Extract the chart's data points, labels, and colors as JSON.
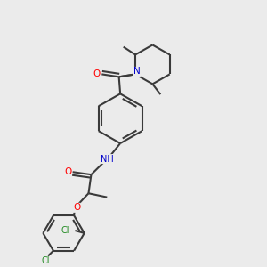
{
  "bg_color": "#ebebeb",
  "bond_color": "#3a3a3a",
  "bond_width": 1.5,
  "atom_colors": {
    "O": "#ff0000",
    "N": "#0000cc",
    "Cl": "#228B22",
    "C": "#3a3a3a",
    "H": "#808080"
  },
  "figsize": [
    3.0,
    3.0
  ],
  "dpi": 100
}
